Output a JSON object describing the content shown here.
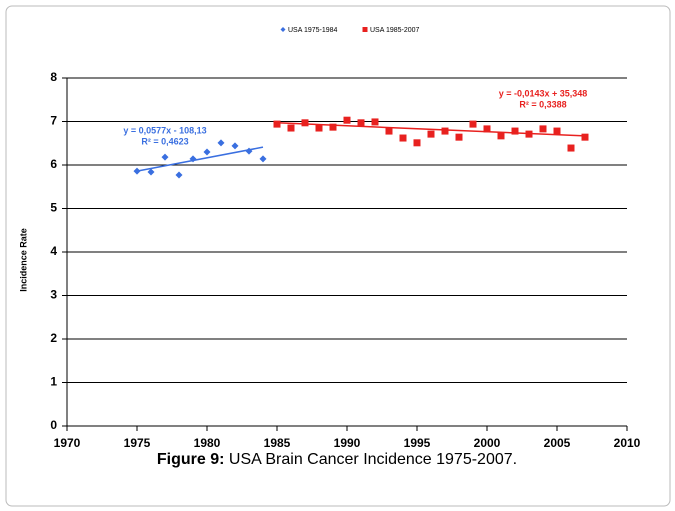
{
  "chart_data": {
    "type": "scatter",
    "ylabel": "Incidence Rate",
    "caption_label": "Figure 9:",
    "caption_text": "USA Brain Cancer Incidence 1975-2007.",
    "xlim": [
      1970,
      2010
    ],
    "xticks": [
      1970,
      1975,
      1980,
      1985,
      1990,
      1995,
      2000,
      2005,
      2010
    ],
    "ylim": [
      0,
      8
    ],
    "yticks": [
      0,
      1,
      2,
      3,
      4,
      5,
      6,
      7,
      8
    ],
    "grid": true,
    "legend": "top",
    "series": [
      {
        "name": "USA 1975-1984",
        "color": "#3a6fe0",
        "marker": "diamond",
        "x": [
          1975,
          1976,
          1977,
          1978,
          1979,
          1980,
          1981,
          1982,
          1983,
          1984
        ],
        "values": [
          5.86,
          5.84,
          6.18,
          5.77,
          6.14,
          6.3,
          6.51,
          6.44,
          6.32,
          6.14
        ]
      },
      {
        "name": "USA 1985-2007",
        "color": "#e8211f",
        "marker": "square",
        "x": [
          1985,
          1986,
          1987,
          1988,
          1989,
          1990,
          1991,
          1992,
          1993,
          1994,
          1995,
          1996,
          1997,
          1998,
          1999,
          2000,
          2001,
          2002,
          2003,
          2004,
          2005,
          2006,
          2007
        ],
        "values": [
          6.94,
          6.85,
          6.97,
          6.85,
          6.87,
          7.03,
          6.97,
          6.99,
          6.78,
          6.62,
          6.51,
          6.71,
          6.78,
          6.64,
          6.94,
          6.83,
          6.67,
          6.78,
          6.71,
          6.83,
          6.78,
          6.39,
          6.64
        ]
      }
    ],
    "trendlines": [
      {
        "color": "#3a6fe0",
        "x": [
          1975,
          1984
        ],
        "values": [
          5.86,
          6.41
        ]
      },
      {
        "color": "#e8211f",
        "x": [
          1985,
          2007
        ],
        "values": [
          6.97,
          6.67
        ]
      }
    ],
    "annotations": [
      {
        "color": "#3a6fe0",
        "lines": [
          "y = 0,0577x - 108,13",
          "R² = 0,4623"
        ]
      },
      {
        "color": "#e8211f",
        "lines": [
          "y = -0,0143x + 35,348",
          "R² = 0,3388"
        ]
      }
    ]
  }
}
